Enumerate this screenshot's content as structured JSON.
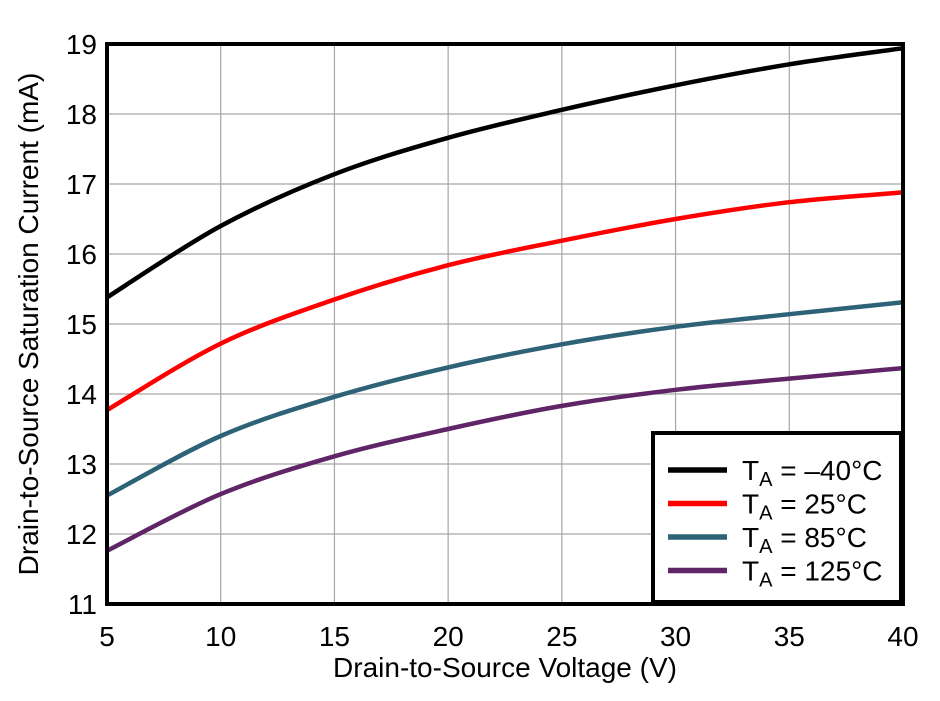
{
  "chart_data": {
    "type": "line",
    "title": "",
    "xlabel": "Drain-to-Source Voltage (V)",
    "ylabel": "Drain-to-Source Saturation Current (mA)",
    "xlim": [
      5,
      40
    ],
    "ylim": [
      11,
      19
    ],
    "x_ticks": [
      5,
      10,
      15,
      20,
      25,
      30,
      35,
      40
    ],
    "y_ticks": [
      11,
      12,
      13,
      14,
      15,
      16,
      17,
      18,
      19
    ],
    "grid": true,
    "legend_position": "inside-bottom-right",
    "x": [
      5,
      10,
      15,
      20,
      25,
      30,
      35,
      40
    ],
    "series": [
      {
        "name": "TA = –40°C",
        "legend": {
          "base": "T",
          "sub": "A",
          "rest": " = –40°C"
        },
        "color": "#000000",
        "values": [
          15.38,
          16.4,
          17.14,
          17.66,
          18.06,
          18.41,
          18.71,
          18.94
        ]
      },
      {
        "name": "TA = 25°C",
        "legend": {
          "base": "T",
          "sub": "A",
          "rest": " = 25°C"
        },
        "color": "#FF0000",
        "values": [
          13.77,
          14.72,
          15.35,
          15.84,
          16.19,
          16.5,
          16.74,
          16.88
        ]
      },
      {
        "name": "TA = 85°C",
        "legend": {
          "base": "T",
          "sub": "A",
          "rest": " = 85°C"
        },
        "color": "#2D6277",
        "values": [
          12.55,
          13.4,
          13.96,
          14.38,
          14.71,
          14.96,
          15.14,
          15.31
        ]
      },
      {
        "name": "TA = 125°C",
        "legend": {
          "base": "T",
          "sub": "A",
          "rest": " = 125°C"
        },
        "color": "#5F2566",
        "values": [
          11.76,
          12.57,
          13.11,
          13.5,
          13.83,
          14.06,
          14.22,
          14.37
        ]
      }
    ],
    "style": {
      "background": "#FFFFFF",
      "grid_color": "#A6A6A6",
      "axis_color": "#000000",
      "tick_label_color": "#000000"
    }
  }
}
